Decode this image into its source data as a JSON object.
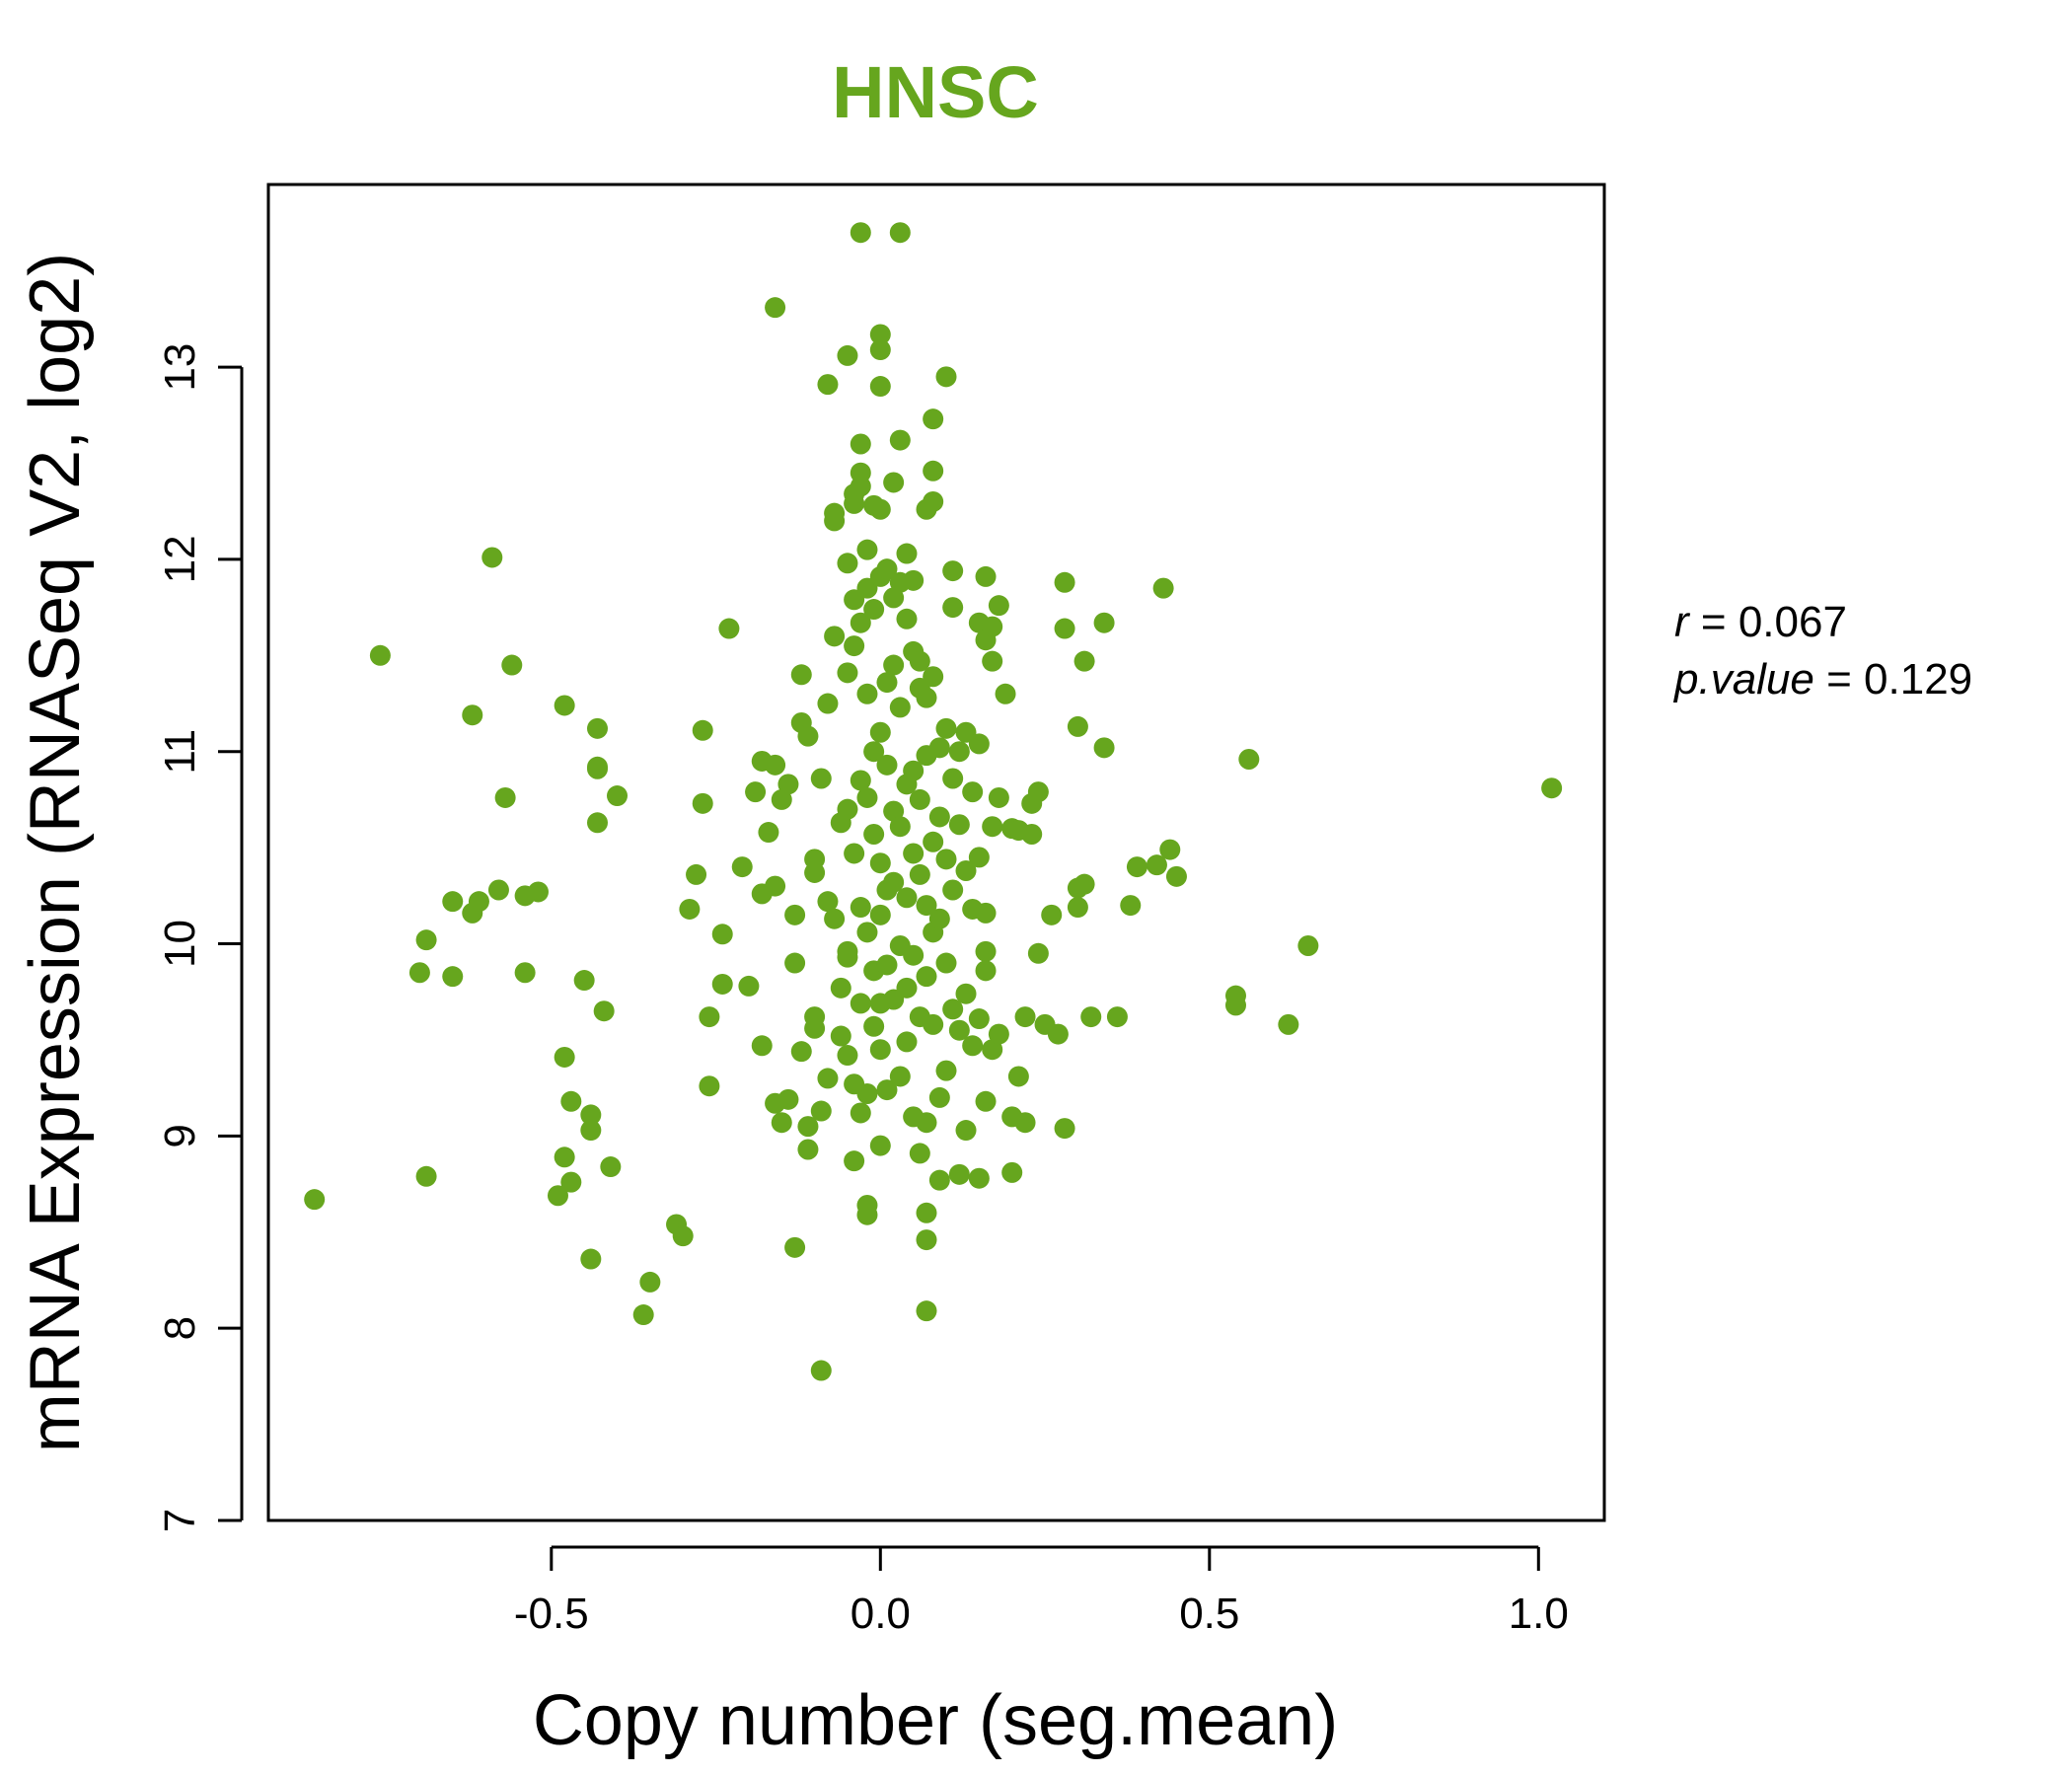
{
  "colors": {
    "series": "#66a61e",
    "title": "#66a61e",
    "axis": "#000000"
  },
  "chart_data": {
    "type": "scatter",
    "title": "HNSC",
    "xlabel": "Copy number (seg.mean)",
    "ylabel": "mRNA Expression (RNASeq V2, log2)",
    "xlim": [
      -0.93,
      1.1
    ],
    "ylim": [
      7,
      13.95
    ],
    "x_ticks": [
      -0.5,
      0.0,
      0.5,
      1.0
    ],
    "x_tick_labels": [
      "-0.5",
      "0.0",
      "0.5",
      "1.0"
    ],
    "y_ticks": [
      7,
      8,
      9,
      10,
      11,
      12,
      13
    ],
    "y_tick_labels": [
      "7",
      "8",
      "9",
      "10",
      "11",
      "12",
      "13"
    ],
    "grid": false,
    "stats": {
      "r_label": "r",
      "r_value": "0.067",
      "p_label": "p.value",
      "p_value": "0.129"
    },
    "series": [
      {
        "points": [
          [
            -0.86,
            8.67
          ],
          [
            -0.76,
            11.5
          ],
          [
            -0.69,
            10.02
          ],
          [
            -0.69,
            8.79
          ],
          [
            -0.7,
            9.85
          ],
          [
            -0.65,
            9.83
          ],
          [
            -0.65,
            10.22
          ],
          [
            -0.62,
            10.16
          ],
          [
            -0.61,
            10.22
          ],
          [
            -0.59,
            12.01
          ],
          [
            -0.58,
            10.28
          ],
          [
            -0.62,
            11.19
          ],
          [
            -0.57,
            10.76
          ],
          [
            -0.56,
            11.45
          ],
          [
            -0.54,
            10.25
          ],
          [
            -0.52,
            10.27
          ],
          [
            -0.54,
            9.85
          ],
          [
            -0.48,
            11.24
          ],
          [
            -0.48,
            9.41
          ],
          [
            -0.47,
            9.18
          ],
          [
            -0.48,
            8.89
          ],
          [
            -0.47,
            8.76
          ],
          [
            -0.49,
            8.69
          ],
          [
            -0.45,
            9.81
          ],
          [
            -0.44,
            9.11
          ],
          [
            -0.44,
            9.03
          ],
          [
            -0.43,
            11.12
          ],
          [
            -0.43,
            10.92
          ],
          [
            -0.43,
            10.91
          ],
          [
            -0.43,
            10.63
          ],
          [
            -0.42,
            9.65
          ],
          [
            -0.41,
            8.84
          ],
          [
            -0.4,
            10.77
          ],
          [
            -0.44,
            8.36
          ],
          [
            -0.35,
            8.24
          ],
          [
            -0.36,
            8.07
          ],
          [
            -0.31,
            8.54
          ],
          [
            -0.3,
            8.48
          ],
          [
            -0.29,
            10.18
          ],
          [
            -0.28,
            10.36
          ],
          [
            -0.27,
            11.11
          ],
          [
            -0.27,
            10.73
          ],
          [
            -0.26,
            9.62
          ],
          [
            -0.26,
            9.26
          ],
          [
            -0.24,
            10.05
          ],
          [
            -0.24,
            9.79
          ],
          [
            -0.23,
            11.64
          ],
          [
            -0.21,
            10.4
          ],
          [
            -0.2,
            9.78
          ],
          [
            -0.19,
            10.79
          ],
          [
            -0.18,
            10.26
          ],
          [
            -0.18,
            9.47
          ],
          [
            -0.18,
            10.95
          ],
          [
            -0.17,
            10.58
          ],
          [
            -0.16,
            10.93
          ],
          [
            -0.16,
            10.3
          ],
          [
            -0.16,
            9.17
          ],
          [
            -0.15,
            9.07
          ],
          [
            -0.15,
            10.75
          ],
          [
            -0.14,
            10.83
          ],
          [
            -0.14,
            9.19
          ],
          [
            -0.13,
            9.9
          ],
          [
            -0.13,
            10.15
          ],
          [
            -0.12,
            9.44
          ],
          [
            -0.13,
            8.42
          ],
          [
            -0.16,
            13.31
          ],
          [
            -0.12,
            11.15
          ],
          [
            -0.12,
            11.4
          ],
          [
            -0.11,
            11.08
          ],
          [
            -0.11,
            9.05
          ],
          [
            -0.11,
            8.93
          ],
          [
            -0.1,
            10.44
          ],
          [
            -0.1,
            10.37
          ],
          [
            -0.1,
            9.56
          ],
          [
            -0.1,
            9.62
          ],
          [
            -0.09,
            10.86
          ],
          [
            -0.09,
            7.78
          ],
          [
            -0.09,
            9.13
          ],
          [
            -0.08,
            9.3
          ],
          [
            -0.08,
            11.25
          ],
          [
            -0.08,
            10.22
          ],
          [
            -0.08,
            12.91
          ],
          [
            -0.07,
            12.24
          ],
          [
            -0.07,
            12.2
          ],
          [
            -0.07,
            11.6
          ],
          [
            -0.07,
            10.13
          ],
          [
            -0.06,
            9.77
          ],
          [
            -0.06,
            9.52
          ],
          [
            -0.06,
            10.63
          ],
          [
            -0.05,
            13.06
          ],
          [
            -0.05,
            11.98
          ],
          [
            -0.05,
            11.41
          ],
          [
            -0.05,
            10.7
          ],
          [
            -0.05,
            9.96
          ],
          [
            -0.05,
            9.93
          ],
          [
            -0.05,
            9.42
          ],
          [
            -0.04,
            12.34
          ],
          [
            -0.04,
            12.29
          ],
          [
            -0.04,
            11.79
          ],
          [
            -0.04,
            11.55
          ],
          [
            -0.04,
            10.47
          ],
          [
            -0.04,
            9.27
          ],
          [
            -0.04,
            8.87
          ],
          [
            -0.03,
            13.7
          ],
          [
            -0.03,
            12.6
          ],
          [
            -0.03,
            12.45
          ],
          [
            -0.03,
            12.38
          ],
          [
            -0.03,
            11.67
          ],
          [
            -0.03,
            10.85
          ],
          [
            -0.03,
            10.19
          ],
          [
            -0.03,
            9.69
          ],
          [
            -0.03,
            9.12
          ],
          [
            -0.02,
            12.05
          ],
          [
            -0.02,
            11.85
          ],
          [
            -0.02,
            11.3
          ],
          [
            -0.02,
            10.76
          ],
          [
            -0.02,
            10.06
          ],
          [
            -0.02,
            9.22
          ],
          [
            -0.02,
            8.64
          ],
          [
            -0.02,
            8.59
          ],
          [
            -0.01,
            12.28
          ],
          [
            -0.01,
            11.74
          ],
          [
            -0.01,
            11.0
          ],
          [
            -0.01,
            10.57
          ],
          [
            -0.01,
            9.86
          ],
          [
            -0.01,
            9.57
          ],
          [
            0.0,
            13.17
          ],
          [
            0.0,
            13.09
          ],
          [
            0.0,
            12.9
          ],
          [
            0.0,
            12.26
          ],
          [
            0.0,
            11.91
          ],
          [
            0.0,
            11.1
          ],
          [
            0.0,
            10.42
          ],
          [
            0.0,
            10.15
          ],
          [
            0.0,
            9.69
          ],
          [
            0.0,
            9.45
          ],
          [
            0.0,
            8.95
          ],
          [
            0.01,
            11.95
          ],
          [
            0.01,
            11.36
          ],
          [
            0.01,
            10.93
          ],
          [
            0.01,
            10.28
          ],
          [
            0.01,
            9.89
          ],
          [
            0.01,
            9.24
          ],
          [
            0.02,
            12.4
          ],
          [
            0.02,
            11.8
          ],
          [
            0.02,
            11.45
          ],
          [
            0.02,
            10.69
          ],
          [
            0.02,
            10.32
          ],
          [
            0.02,
            9.71
          ],
          [
            0.03,
            13.7
          ],
          [
            0.03,
            12.62
          ],
          [
            0.03,
            11.88
          ],
          [
            0.03,
            11.23
          ],
          [
            0.03,
            10.61
          ],
          [
            0.03,
            9.99
          ],
          [
            0.03,
            9.31
          ],
          [
            0.04,
            12.03
          ],
          [
            0.04,
            11.69
          ],
          [
            0.04,
            10.83
          ],
          [
            0.04,
            10.24
          ],
          [
            0.04,
            9.77
          ],
          [
            0.04,
            9.49
          ],
          [
            0.05,
            11.89
          ],
          [
            0.05,
            11.52
          ],
          [
            0.05,
            10.9
          ],
          [
            0.05,
            10.47
          ],
          [
            0.05,
            9.94
          ],
          [
            0.05,
            9.1
          ],
          [
            0.06,
            11.47
          ],
          [
            0.06,
            11.33
          ],
          [
            0.06,
            10.75
          ],
          [
            0.06,
            10.36
          ],
          [
            0.06,
            9.62
          ],
          [
            0.06,
            8.91
          ],
          [
            0.07,
            12.26
          ],
          [
            0.07,
            11.28
          ],
          [
            0.07,
            10.98
          ],
          [
            0.07,
            10.2
          ],
          [
            0.07,
            9.83
          ],
          [
            0.07,
            9.07
          ],
          [
            0.07,
            8.6
          ],
          [
            0.07,
            8.46
          ],
          [
            0.07,
            8.09
          ],
          [
            0.08,
            12.73
          ],
          [
            0.08,
            12.46
          ],
          [
            0.08,
            12.3
          ],
          [
            0.08,
            11.39
          ],
          [
            0.08,
            10.53
          ],
          [
            0.08,
            10.06
          ],
          [
            0.08,
            9.58
          ],
          [
            0.09,
            11.02
          ],
          [
            0.09,
            10.66
          ],
          [
            0.09,
            10.13
          ],
          [
            0.09,
            9.2
          ],
          [
            0.09,
            8.77
          ],
          [
            0.1,
            12.95
          ],
          [
            0.1,
            11.12
          ],
          [
            0.1,
            10.44
          ],
          [
            0.1,
            9.9
          ],
          [
            0.1,
            9.34
          ],
          [
            0.11,
            11.94
          ],
          [
            0.11,
            11.75
          ],
          [
            0.11,
            10.86
          ],
          [
            0.11,
            10.28
          ],
          [
            0.11,
            9.66
          ],
          [
            0.12,
            11.0
          ],
          [
            0.12,
            10.62
          ],
          [
            0.12,
            9.55
          ],
          [
            0.12,
            8.8
          ],
          [
            0.13,
            11.1
          ],
          [
            0.13,
            10.38
          ],
          [
            0.13,
            9.74
          ],
          [
            0.13,
            9.03
          ],
          [
            0.14,
            10.79
          ],
          [
            0.14,
            10.18
          ],
          [
            0.14,
            9.47
          ],
          [
            0.15,
            11.67
          ],
          [
            0.15,
            11.04
          ],
          [
            0.15,
            10.45
          ],
          [
            0.15,
            9.61
          ],
          [
            0.15,
            8.78
          ],
          [
            0.16,
            11.91
          ],
          [
            0.16,
            11.58
          ],
          [
            0.16,
            10.16
          ],
          [
            0.16,
            9.96
          ],
          [
            0.16,
            9.86
          ],
          [
            0.16,
            9.18
          ],
          [
            0.17,
            11.65
          ],
          [
            0.17,
            11.47
          ],
          [
            0.17,
            10.61
          ],
          [
            0.17,
            9.45
          ],
          [
            0.18,
            11.76
          ],
          [
            0.18,
            10.76
          ],
          [
            0.18,
            9.53
          ],
          [
            0.19,
            11.3
          ],
          [
            0.2,
            10.6
          ],
          [
            0.2,
            9.1
          ],
          [
            0.2,
            8.81
          ],
          [
            0.21,
            10.59
          ],
          [
            0.21,
            9.31
          ],
          [
            0.22,
            9.07
          ],
          [
            0.22,
            9.62
          ],
          [
            0.23,
            10.57
          ],
          [
            0.23,
            10.73
          ],
          [
            0.24,
            10.79
          ],
          [
            0.24,
            9.95
          ],
          [
            0.25,
            9.58
          ],
          [
            0.26,
            10.15
          ],
          [
            0.27,
            9.53
          ],
          [
            0.28,
            11.88
          ],
          [
            0.28,
            11.64
          ],
          [
            0.28,
            9.04
          ],
          [
            0.3,
            11.13
          ],
          [
            0.3,
            10.29
          ],
          [
            0.3,
            10.19
          ],
          [
            0.31,
            11.47
          ],
          [
            0.31,
            10.31
          ],
          [
            0.32,
            9.62
          ],
          [
            0.34,
            11.67
          ],
          [
            0.34,
            11.02
          ],
          [
            0.36,
            9.62
          ],
          [
            0.38,
            10.2
          ],
          [
            0.39,
            10.4
          ],
          [
            0.42,
            10.41
          ],
          [
            0.43,
            11.85
          ],
          [
            0.44,
            10.49
          ],
          [
            0.45,
            10.35
          ],
          [
            0.54,
            9.68
          ],
          [
            0.54,
            9.73
          ],
          [
            0.56,
            10.96
          ],
          [
            0.62,
            9.58
          ],
          [
            0.65,
            9.99
          ],
          [
            1.02,
            10.81
          ]
        ]
      }
    ]
  }
}
